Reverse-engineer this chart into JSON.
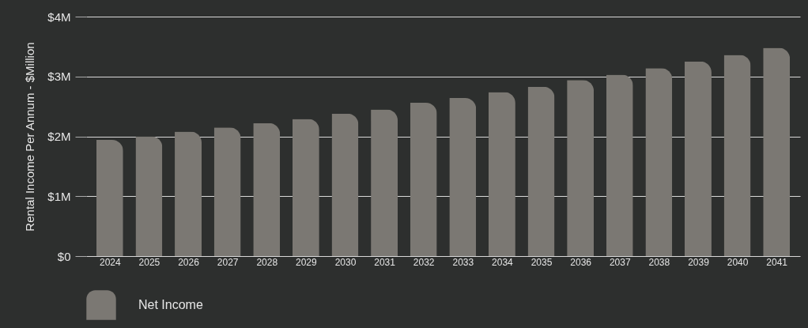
{
  "chart_data": {
    "type": "bar",
    "ylabel": "Rental Income Per Annum - $Million",
    "categories": [
      "2024",
      "2025",
      "2026",
      "2027",
      "2028",
      "2029",
      "2030",
      "2031",
      "2032",
      "2033",
      "2034",
      "2035",
      "2036",
      "2037",
      "2038",
      "2039",
      "2040",
      "2041"
    ],
    "series": [
      {
        "name": "Net Income",
        "color": "#7b7873",
        "values": [
          1.94,
          2.0,
          2.08,
          2.15,
          2.22,
          2.29,
          2.38,
          2.45,
          2.56,
          2.64,
          2.74,
          2.83,
          2.94,
          3.03,
          3.14,
          3.25,
          3.36,
          3.48
        ]
      }
    ],
    "ylim": [
      0,
      4
    ],
    "yticks": [
      {
        "value": 0,
        "label": "$0"
      },
      {
        "value": 1,
        "label": "$1M"
      },
      {
        "value": 2,
        "label": "$2M"
      },
      {
        "value": 3,
        "label": "$3M"
      },
      {
        "value": 4,
        "label": "$4M"
      }
    ],
    "grid": "y",
    "legend": "bottom"
  }
}
